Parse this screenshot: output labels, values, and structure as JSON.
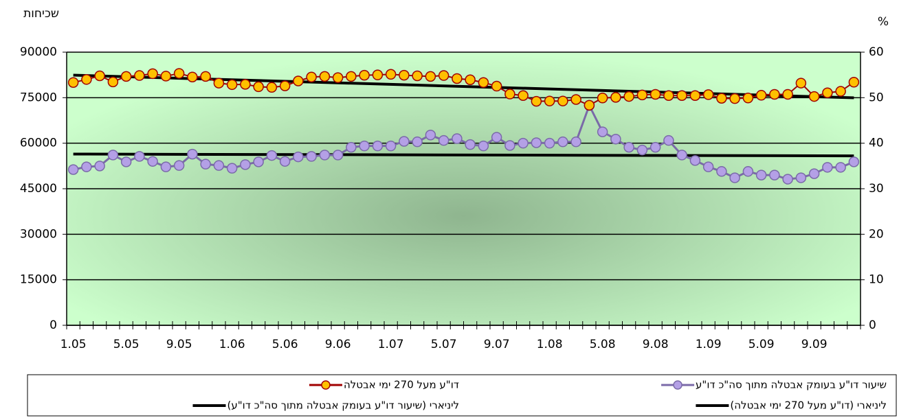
{
  "chart_data": {
    "type": "line",
    "y_label": "שכיחות",
    "y2_label": "%",
    "categories": [
      "1.05",
      null,
      null,
      null,
      "5.05",
      null,
      null,
      null,
      "9.05",
      null,
      null,
      null,
      "1.06",
      null,
      null,
      null,
      "5.06",
      null,
      null,
      null,
      "9.06",
      null,
      null,
      null,
      "1.07",
      null,
      null,
      null,
      "5.07",
      null,
      null,
      null,
      "9.07",
      null,
      null,
      null,
      "1.08",
      null,
      null,
      null,
      "5.08",
      null,
      null,
      null,
      "9.08",
      null,
      null,
      null,
      "1.09",
      null,
      null,
      null,
      "5.09",
      null,
      null,
      null,
      "9.09",
      null,
      null,
      null
    ],
    "ylim": [
      0,
      90000
    ],
    "yticks": [
      0,
      15000,
      30000,
      45000,
      60000,
      75000,
      90000
    ],
    "y2lim": [
      0,
      60
    ],
    "y2ticks": [
      0,
      10,
      20,
      30,
      40,
      50,
      60
    ],
    "grid": true,
    "series": [
      {
        "name": "דו\"ע מעל 270 ימי אבטלה",
        "color": "#a00000",
        "marker_color": "#ffc000",
        "values": [
          80000,
          81000,
          82200,
          80200,
          82000,
          82300,
          82900,
          82100,
          83000,
          81800,
          82000,
          79800,
          79300,
          79400,
          78600,
          78400,
          78900,
          80500,
          81800,
          82000,
          81600,
          82000,
          82400,
          82500,
          82700,
          82400,
          82200,
          82000,
          82300,
          81300,
          80900,
          80000,
          78800,
          76200,
          75700,
          73800,
          73900,
          73900,
          74400,
          72500,
          74900,
          75100,
          75400,
          75900,
          76100,
          75700,
          75700,
          75700,
          76000,
          74800,
          74700,
          74900,
          75800,
          76100,
          76100,
          79800,
          75400,
          76600,
          77100,
          80100
        ],
        "trendline": {
          "name": "ליניארי (דו\"ע מעל 270 ימי אבטלה)",
          "color": "#000000"
        }
      },
      {
        "name": "שיעור דו\"ע בעומק אבטלה מתוך סה\"כ דו\"ע",
        "color": "#7a6aa8",
        "marker_color": "#b4a0e6",
        "axis": "y2",
        "values": [
          34.2,
          34.8,
          35,
          37.4,
          35.9,
          37.1,
          36,
          34.8,
          35.1,
          37.6,
          35.4,
          35.1,
          34.5,
          35.3,
          35.9,
          37.3,
          36,
          37,
          37.1,
          37.4,
          37.4,
          39.1,
          39.4,
          39.4,
          39.4,
          40.4,
          40.3,
          41.8,
          40.6,
          41,
          39.7,
          39.4,
          41.3,
          39.5,
          40,
          40.1,
          40,
          40.3,
          40.3,
          48.3,
          42.5,
          40.9,
          39.1,
          38.5,
          39.1,
          40.6,
          37.4,
          36.2,
          34.8,
          33.8,
          32.4,
          33.8,
          33,
          33,
          32.1,
          32.4,
          33.3,
          34.7,
          34.7,
          35.9
        ],
        "trendline": {
          "name": "ליניארי (שיעור דו\"ע בעומק אבטלה מתוך סה\"כ דו\"ע)",
          "color": "#000000"
        }
      }
    ]
  }
}
